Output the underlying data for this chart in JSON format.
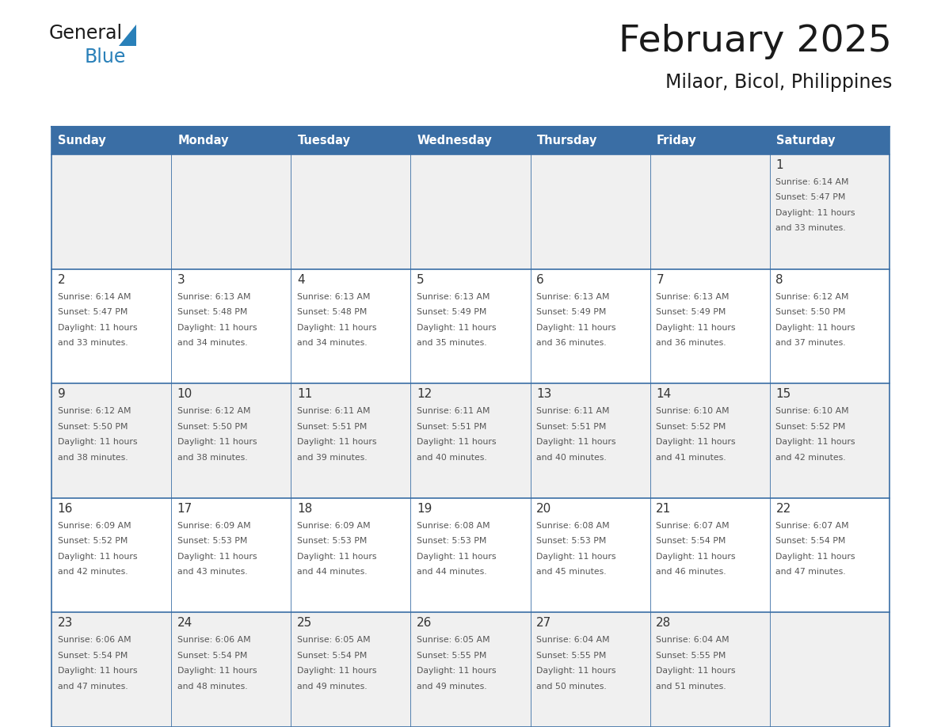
{
  "title": "February 2025",
  "subtitle": "Milaor, Bicol, Philippines",
  "header_bg_color": "#3a6ea5",
  "header_text_color": "#ffffff",
  "grid_line_color": "#3a6ea5",
  "day_names": [
    "Sunday",
    "Monday",
    "Tuesday",
    "Wednesday",
    "Thursday",
    "Friday",
    "Saturday"
  ],
  "title_color": "#1a1a1a",
  "subtitle_color": "#1a1a1a",
  "day_number_color": "#333333",
  "info_text_color": "#555555",
  "row0_bg": "#f0f0f0",
  "row1_bg": "#ffffff",
  "logo_general_color": "#1a1a1a",
  "logo_blue_color": "#2980b9",
  "logo_triangle_color": "#2980b9",
  "calendar": [
    [
      null,
      null,
      null,
      null,
      null,
      null,
      {
        "day": 1,
        "sunrise": "6:14 AM",
        "sunset": "5:47 PM",
        "daylight": "11 hours and 33 minutes"
      }
    ],
    [
      {
        "day": 2,
        "sunrise": "6:14 AM",
        "sunset": "5:47 PM",
        "daylight": "11 hours and 33 minutes"
      },
      {
        "day": 3,
        "sunrise": "6:13 AM",
        "sunset": "5:48 PM",
        "daylight": "11 hours and 34 minutes"
      },
      {
        "day": 4,
        "sunrise": "6:13 AM",
        "sunset": "5:48 PM",
        "daylight": "11 hours and 34 minutes"
      },
      {
        "day": 5,
        "sunrise": "6:13 AM",
        "sunset": "5:49 PM",
        "daylight": "11 hours and 35 minutes"
      },
      {
        "day": 6,
        "sunrise": "6:13 AM",
        "sunset": "5:49 PM",
        "daylight": "11 hours and 36 minutes"
      },
      {
        "day": 7,
        "sunrise": "6:13 AM",
        "sunset": "5:49 PM",
        "daylight": "11 hours and 36 minutes"
      },
      {
        "day": 8,
        "sunrise": "6:12 AM",
        "sunset": "5:50 PM",
        "daylight": "11 hours and 37 minutes"
      }
    ],
    [
      {
        "day": 9,
        "sunrise": "6:12 AM",
        "sunset": "5:50 PM",
        "daylight": "11 hours and 38 minutes"
      },
      {
        "day": 10,
        "sunrise": "6:12 AM",
        "sunset": "5:50 PM",
        "daylight": "11 hours and 38 minutes"
      },
      {
        "day": 11,
        "sunrise": "6:11 AM",
        "sunset": "5:51 PM",
        "daylight": "11 hours and 39 minutes"
      },
      {
        "day": 12,
        "sunrise": "6:11 AM",
        "sunset": "5:51 PM",
        "daylight": "11 hours and 40 minutes"
      },
      {
        "day": 13,
        "sunrise": "6:11 AM",
        "sunset": "5:51 PM",
        "daylight": "11 hours and 40 minutes"
      },
      {
        "day": 14,
        "sunrise": "6:10 AM",
        "sunset": "5:52 PM",
        "daylight": "11 hours and 41 minutes"
      },
      {
        "day": 15,
        "sunrise": "6:10 AM",
        "sunset": "5:52 PM",
        "daylight": "11 hours and 42 minutes"
      }
    ],
    [
      {
        "day": 16,
        "sunrise": "6:09 AM",
        "sunset": "5:52 PM",
        "daylight": "11 hours and 42 minutes"
      },
      {
        "day": 17,
        "sunrise": "6:09 AM",
        "sunset": "5:53 PM",
        "daylight": "11 hours and 43 minutes"
      },
      {
        "day": 18,
        "sunrise": "6:09 AM",
        "sunset": "5:53 PM",
        "daylight": "11 hours and 44 minutes"
      },
      {
        "day": 19,
        "sunrise": "6:08 AM",
        "sunset": "5:53 PM",
        "daylight": "11 hours and 44 minutes"
      },
      {
        "day": 20,
        "sunrise": "6:08 AM",
        "sunset": "5:53 PM",
        "daylight": "11 hours and 45 minutes"
      },
      {
        "day": 21,
        "sunrise": "6:07 AM",
        "sunset": "5:54 PM",
        "daylight": "11 hours and 46 minutes"
      },
      {
        "day": 22,
        "sunrise": "6:07 AM",
        "sunset": "5:54 PM",
        "daylight": "11 hours and 47 minutes"
      }
    ],
    [
      {
        "day": 23,
        "sunrise": "6:06 AM",
        "sunset": "5:54 PM",
        "daylight": "11 hours and 47 minutes"
      },
      {
        "day": 24,
        "sunrise": "6:06 AM",
        "sunset": "5:54 PM",
        "daylight": "11 hours and 48 minutes"
      },
      {
        "day": 25,
        "sunrise": "6:05 AM",
        "sunset": "5:54 PM",
        "daylight": "11 hours and 49 minutes"
      },
      {
        "day": 26,
        "sunrise": "6:05 AM",
        "sunset": "5:55 PM",
        "daylight": "11 hours and 49 minutes"
      },
      {
        "day": 27,
        "sunrise": "6:04 AM",
        "sunset": "5:55 PM",
        "daylight": "11 hours and 50 minutes"
      },
      {
        "day": 28,
        "sunrise": "6:04 AM",
        "sunset": "5:55 PM",
        "daylight": "11 hours and 51 minutes"
      },
      null
    ]
  ]
}
